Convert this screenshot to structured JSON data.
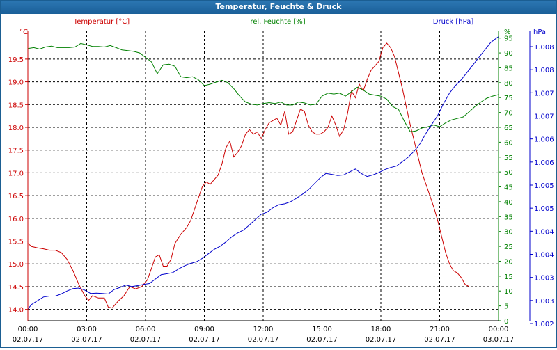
{
  "window": {
    "title": "Temperatur, Feuchte & Druck"
  },
  "chart_data": {
    "type": "line",
    "title": "Temperatur, Feuchte & Druck",
    "grid": true,
    "x": {
      "ticks": [
        {
          "time": "00:00",
          "date": "02.07.17"
        },
        {
          "time": "03:00",
          "date": "02.07.17"
        },
        {
          "time": "06:00",
          "date": "02.07.17"
        },
        {
          "time": "09:00",
          "date": "02.07.17"
        },
        {
          "time": "12:00",
          "date": "02.07.17"
        },
        {
          "time": "15:00",
          "date": "02.07.17"
        },
        {
          "time": "18:00",
          "date": "02.07.17"
        },
        {
          "time": "21:00",
          "date": "02.07.17"
        },
        {
          "time": "00:00",
          "date": "03.07.17"
        }
      ],
      "range_hours": [
        0,
        24
      ]
    },
    "axes": {
      "temperature": {
        "label": "Temperatur [°C]",
        "unit": "°C",
        "color": "#cc0000",
        "side": "left",
        "range": [
          13.75,
          20.125
        ],
        "ticks": [
          "14.0",
          "14.5",
          "15.0",
          "15.5",
          "16.0",
          "16.5",
          "17.0",
          "17.5",
          "18.0",
          "18.5",
          "19.0",
          "19.5"
        ]
      },
      "humidity": {
        "label": "rel. Feuchte [%]",
        "unit": "%",
        "color": "#008000",
        "side": "right",
        "range": [
          0,
          97.5
        ],
        "ticks": [
          "0",
          "5",
          "10",
          "15",
          "20",
          "25",
          "30",
          "35",
          "40",
          "45",
          "50",
          "55",
          "60",
          "65",
          "70",
          "75",
          "80",
          "85",
          "90",
          "95"
        ]
      },
      "pressure": {
        "label": "Druck [hPa]",
        "unit": "hPa",
        "color": "#0000cc",
        "side": "right",
        "ticks": [
          "1.002",
          "1.003",
          "1.003",
          "1.004",
          "1.004",
          "1.005",
          "1.005",
          "1.006",
          "1.006",
          "1.007",
          "1.007",
          "1.008",
          "1.008"
        ]
      }
    },
    "series": [
      {
        "name": "Temperatur [°C]",
        "axis": "temperature",
        "color": "#cc0000",
        "points": [
          [
            0,
            15.45
          ],
          [
            0.2,
            15.38
          ],
          [
            0.5,
            15.35
          ],
          [
            0.8,
            15.33
          ],
          [
            1.1,
            15.3
          ],
          [
            1.4,
            15.3
          ],
          [
            1.7,
            15.25
          ],
          [
            2,
            15.1
          ],
          [
            2.3,
            14.85
          ],
          [
            2.6,
            14.55
          ],
          [
            2.9,
            14.3
          ],
          [
            3.1,
            14.2
          ],
          [
            3.3,
            14.3
          ],
          [
            3.6,
            14.25
          ],
          [
            3.9,
            14.25
          ],
          [
            4.1,
            14.05
          ],
          [
            4.3,
            14.03
          ],
          [
            4.6,
            14.18
          ],
          [
            4.9,
            14.3
          ],
          [
            5.2,
            14.5
          ],
          [
            5.5,
            14.45
          ],
          [
            5.8,
            14.5
          ],
          [
            6.1,
            14.65
          ],
          [
            6.3,
            14.9
          ],
          [
            6.5,
            15.15
          ],
          [
            6.7,
            15.2
          ],
          [
            6.9,
            14.95
          ],
          [
            7.1,
            14.95
          ],
          [
            7.3,
            15.1
          ],
          [
            7.5,
            15.45
          ],
          [
            7.8,
            15.65
          ],
          [
            8.1,
            15.8
          ],
          [
            8.3,
            15.95
          ],
          [
            8.5,
            16.2
          ],
          [
            8.7,
            16.45
          ],
          [
            8.9,
            16.7
          ],
          [
            9.1,
            16.8
          ],
          [
            9.3,
            16.75
          ],
          [
            9.5,
            16.85
          ],
          [
            9.7,
            16.95
          ],
          [
            9.9,
            17.2
          ],
          [
            10.1,
            17.55
          ],
          [
            10.3,
            17.7
          ],
          [
            10.5,
            17.35
          ],
          [
            10.7,
            17.45
          ],
          [
            10.9,
            17.6
          ],
          [
            11.1,
            17.85
          ],
          [
            11.3,
            17.95
          ],
          [
            11.5,
            17.85
          ],
          [
            11.7,
            17.9
          ],
          [
            11.9,
            17.75
          ],
          [
            12.1,
            17.95
          ],
          [
            12.3,
            18.1
          ],
          [
            12.5,
            18.15
          ],
          [
            12.7,
            18.2
          ],
          [
            12.9,
            18.05
          ],
          [
            13.1,
            18.35
          ],
          [
            13.3,
            17.85
          ],
          [
            13.5,
            17.9
          ],
          [
            13.7,
            18.15
          ],
          [
            13.9,
            18.4
          ],
          [
            14.1,
            18.35
          ],
          [
            14.3,
            18.05
          ],
          [
            14.5,
            17.9
          ],
          [
            14.7,
            17.85
          ],
          [
            14.9,
            17.85
          ],
          [
            15.1,
            17.9
          ],
          [
            15.3,
            18
          ],
          [
            15.5,
            18.25
          ],
          [
            15.7,
            18.05
          ],
          [
            15.9,
            17.8
          ],
          [
            16.1,
            17.95
          ],
          [
            16.3,
            18.3
          ],
          [
            16.5,
            18.8
          ],
          [
            16.7,
            18.65
          ],
          [
            16.9,
            18.95
          ],
          [
            17.1,
            18.8
          ],
          [
            17.3,
            19.05
          ],
          [
            17.5,
            19.25
          ],
          [
            17.7,
            19.35
          ],
          [
            17.9,
            19.45
          ],
          [
            18.1,
            19.75
          ],
          [
            18.3,
            19.85
          ],
          [
            18.5,
            19.75
          ],
          [
            18.7,
            19.55
          ],
          [
            18.9,
            19.2
          ],
          [
            19.1,
            18.85
          ],
          [
            19.3,
            18.45
          ],
          [
            19.5,
            18.05
          ],
          [
            19.7,
            17.7
          ],
          [
            19.9,
            17.35
          ],
          [
            20.1,
            17
          ],
          [
            20.3,
            16.75
          ],
          [
            20.5,
            16.5
          ],
          [
            20.7,
            16.25
          ],
          [
            20.9,
            15.95
          ],
          [
            21.1,
            15.6
          ],
          [
            21.3,
            15.25
          ],
          [
            21.5,
            15
          ],
          [
            21.7,
            14.85
          ],
          [
            21.9,
            14.8
          ],
          [
            22.1,
            14.7
          ],
          [
            22.3,
            14.55
          ],
          [
            22.5,
            14.5
          ]
        ]
      },
      {
        "name": "rel. Feuchte [%]",
        "axis": "humidity",
        "color": "#008000",
        "points": [
          [
            0,
            91.5
          ],
          [
            0.3,
            91.8
          ],
          [
            0.6,
            91.3
          ],
          [
            0.9,
            92
          ],
          [
            1.2,
            92.3
          ],
          [
            1.5,
            91.8
          ],
          [
            1.8,
            91.8
          ],
          [
            2.1,
            91.8
          ],
          [
            2.4,
            92
          ],
          [
            2.7,
            93.2
          ],
          [
            3,
            92.7
          ],
          [
            3.3,
            92.2
          ],
          [
            3.6,
            92.2
          ],
          [
            3.9,
            92
          ],
          [
            4.2,
            92.5
          ],
          [
            4.5,
            91.8
          ],
          [
            4.8,
            91
          ],
          [
            5.1,
            90.8
          ],
          [
            5.4,
            90.5
          ],
          [
            5.7,
            90
          ],
          [
            6,
            88.5
          ],
          [
            6.3,
            87
          ],
          [
            6.6,
            83
          ],
          [
            6.9,
            86
          ],
          [
            7.2,
            86.2
          ],
          [
            7.5,
            85.5
          ],
          [
            7.8,
            82
          ],
          [
            8.1,
            81.7
          ],
          [
            8.4,
            82
          ],
          [
            8.7,
            81
          ],
          [
            9,
            79
          ],
          [
            9.3,
            79.5
          ],
          [
            9.6,
            80.2
          ],
          [
            9.9,
            80.8
          ],
          [
            10.2,
            80
          ],
          [
            10.5,
            78
          ],
          [
            10.8,
            75.5
          ],
          [
            11.1,
            73.5
          ],
          [
            11.4,
            72.8
          ],
          [
            11.7,
            72.5
          ],
          [
            12,
            73
          ],
          [
            12.3,
            73.3
          ],
          [
            12.6,
            73
          ],
          [
            12.9,
            73.5
          ],
          [
            13.2,
            72.5
          ],
          [
            13.5,
            72.5
          ],
          [
            13.8,
            73.5
          ],
          [
            14.1,
            73.2
          ],
          [
            14.4,
            72.5
          ],
          [
            14.7,
            72.8
          ],
          [
            15,
            75.5
          ],
          [
            15.3,
            76.5
          ],
          [
            15.6,
            76.2
          ],
          [
            15.9,
            76.5
          ],
          [
            16.2,
            75.5
          ],
          [
            16.5,
            77
          ],
          [
            16.8,
            78.5
          ],
          [
            17.1,
            77.5
          ],
          [
            17.4,
            76.2
          ],
          [
            17.7,
            75.8
          ],
          [
            18,
            75.5
          ],
          [
            18.3,
            74.5
          ],
          [
            18.6,
            72
          ],
          [
            18.9,
            71
          ],
          [
            19.2,
            67
          ],
          [
            19.5,
            63.5
          ],
          [
            19.8,
            63.8
          ],
          [
            20.1,
            64.8
          ],
          [
            20.4,
            65.2
          ],
          [
            20.7,
            65.8
          ],
          [
            21,
            65.2
          ],
          [
            21.3,
            66.5
          ],
          [
            21.6,
            67.5
          ],
          [
            21.9,
            68
          ],
          [
            22.2,
            68.5
          ],
          [
            22.5,
            70.2
          ],
          [
            22.8,
            72
          ],
          [
            23.1,
            73.5
          ],
          [
            23.4,
            74.8
          ],
          [
            23.7,
            75.5
          ],
          [
            24,
            76
          ]
        ]
      },
      {
        "name": "Druck [hPa]",
        "axis": "pressure",
        "color": "#0000cc",
        "points": [
          [
            0,
            4
          ],
          [
            0.2,
            5.5
          ],
          [
            0.5,
            6.8
          ],
          [
            0.8,
            8
          ],
          [
            1.1,
            8.3
          ],
          [
            1.4,
            8.3
          ],
          [
            1.7,
            9
          ],
          [
            2,
            10
          ],
          [
            2.3,
            10.8
          ],
          [
            2.6,
            11
          ],
          [
            2.9,
            10.3
          ],
          [
            3.2,
            9.2
          ],
          [
            3.5,
            9.3
          ],
          [
            3.8,
            9.2
          ],
          [
            4.1,
            9
          ],
          [
            4.4,
            10.5
          ],
          [
            4.7,
            11.2
          ],
          [
            5,
            12
          ],
          [
            5.3,
            11.5
          ],
          [
            5.6,
            11.8
          ],
          [
            5.9,
            12.2
          ],
          [
            6.2,
            12.5
          ],
          [
            6.5,
            14
          ],
          [
            6.8,
            15.5
          ],
          [
            7.1,
            15.8
          ],
          [
            7.4,
            16.2
          ],
          [
            7.7,
            17.5
          ],
          [
            8,
            18.5
          ],
          [
            8.3,
            19.3
          ],
          [
            8.6,
            19.8
          ],
          [
            8.9,
            21
          ],
          [
            9.2,
            22.5
          ],
          [
            9.5,
            24
          ],
          [
            9.8,
            25
          ],
          [
            10.1,
            26.5
          ],
          [
            10.4,
            28.2
          ],
          [
            10.7,
            29.5
          ],
          [
            11,
            30.5
          ],
          [
            11.3,
            32.2
          ],
          [
            11.6,
            34
          ],
          [
            11.9,
            35.8
          ],
          [
            12.2,
            36.5
          ],
          [
            12.5,
            38
          ],
          [
            12.8,
            39
          ],
          [
            13.1,
            39.3
          ],
          [
            13.4,
            40
          ],
          [
            13.7,
            41.2
          ],
          [
            14,
            42.5
          ],
          [
            14.3,
            44
          ],
          [
            14.6,
            46
          ],
          [
            14.9,
            48
          ],
          [
            15.2,
            49.5
          ],
          [
            15.5,
            49.2
          ],
          [
            15.8,
            48.8
          ],
          [
            16.1,
            49
          ],
          [
            16.4,
            50
          ],
          [
            16.7,
            51
          ],
          [
            17,
            49.5
          ],
          [
            17.3,
            48.5
          ],
          [
            17.6,
            49
          ],
          [
            17.9,
            49.8
          ],
          [
            18.2,
            50.8
          ],
          [
            18.5,
            51.5
          ],
          [
            18.8,
            52
          ],
          [
            19.1,
            53.5
          ],
          [
            19.4,
            55
          ],
          [
            19.7,
            57
          ],
          [
            20,
            59.5
          ],
          [
            20.3,
            63
          ],
          [
            20.6,
            66
          ],
          [
            20.9,
            69
          ],
          [
            21.2,
            73
          ],
          [
            21.5,
            76.5
          ],
          [
            21.8,
            79
          ],
          [
            22.1,
            81
          ],
          [
            22.4,
            83.5
          ],
          [
            22.7,
            86
          ],
          [
            23,
            88.5
          ],
          [
            23.3,
            91
          ],
          [
            23.6,
            93.5
          ],
          [
            23.9,
            95
          ],
          [
            24,
            95.5
          ]
        ]
      }
    ]
  }
}
